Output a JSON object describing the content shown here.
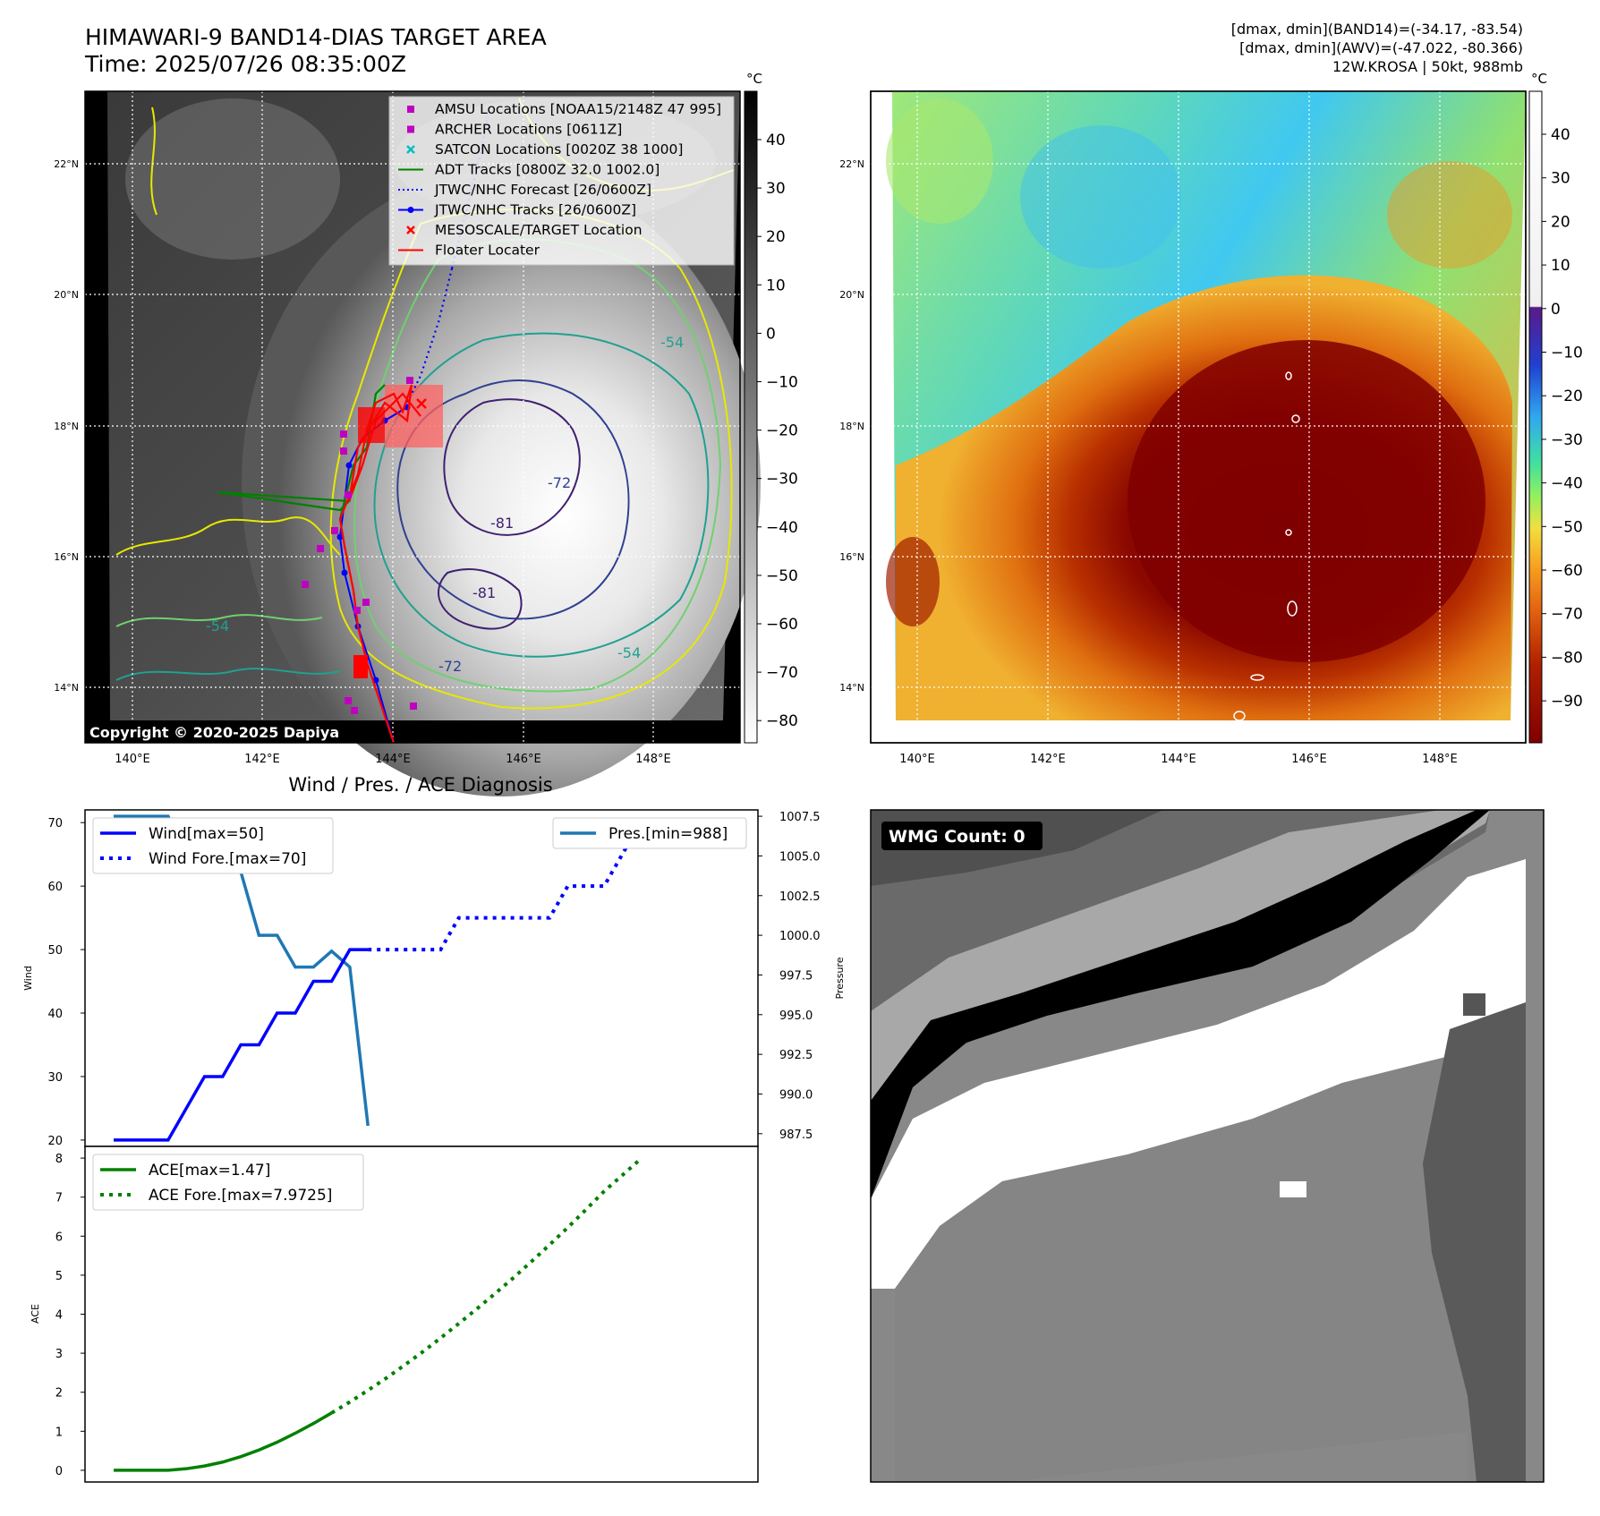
{
  "header": {
    "title": "HIMAWARI-9 BAND14-DIAS TARGET AREA",
    "time": "Time: 2025/07/26 08:35:00Z",
    "stats_band14": "[dmax, dmin](BAND14)=(-34.17, -83.54)",
    "stats_awv": "[dmax, dmin](AWV)=(-47.022, -80.366)",
    "storm": "12W.KROSA | 50kt, 988mb"
  },
  "colors": {
    "amsu": "#c000c0",
    "archer": "#c000c0",
    "satcon": "#00bfbf",
    "adt": "#008000",
    "jtwc_forecast": "#0000ff",
    "jtwc_tracks": "#0000ff",
    "target": "#ff0000",
    "floater": "#ff0000",
    "wind": "#0000ff",
    "pressure": "#1f77b4",
    "ace": "#008000"
  },
  "map": {
    "lon_ticks": [
      "140°E",
      "142°E",
      "144°E",
      "146°E",
      "148°E"
    ],
    "lat_ticks": [
      "22°N",
      "20°N",
      "18°N",
      "16°N",
      "14°N"
    ],
    "copyright": "Copyright © 2020-2025 Dapiya",
    "legend": [
      {
        "label": "AMSU Locations [NOAA15/2148Z 47 995]",
        "marker": "square",
        "color_key": "amsu"
      },
      {
        "label": "ARCHER Locations [0611Z]",
        "marker": "square",
        "color_key": "archer"
      },
      {
        "label": "SATCON Locations [0020Z 38 1000]",
        "marker": "x",
        "color_key": "satcon"
      },
      {
        "label": "ADT Tracks [0800Z 32.0 1002.0]",
        "marker": "line",
        "color_key": "adt"
      },
      {
        "label": "JTWC/NHC Forecast [26/0600Z]",
        "marker": "dotted",
        "color_key": "jtwc_forecast"
      },
      {
        "label": "JTWC/NHC Tracks [26/0600Z]",
        "marker": "line-dot",
        "color_key": "jtwc_tracks"
      },
      {
        "label": "MESOSCALE/TARGET Location",
        "marker": "x",
        "color_key": "target"
      },
      {
        "label": "Floater Locater",
        "marker": "line",
        "color_key": "floater"
      }
    ],
    "contour_labels": [
      "-54",
      "-72",
      "-81",
      "-81",
      "-54",
      "-72",
      "-54"
    ],
    "cbar_unit": "°C",
    "cbar_ticks_gray": [
      "40",
      "30",
      "20",
      "10",
      "0",
      "−10",
      "−20",
      "−30",
      "−40",
      "−50",
      "−60",
      "−70",
      "−80"
    ],
    "cbar_ticks_color": [
      "40",
      "30",
      "20",
      "10",
      "0",
      "−10",
      "−20",
      "−30",
      "−40",
      "−50",
      "−60",
      "−70",
      "−80",
      "−90"
    ]
  },
  "wmg": {
    "label": "WMG Count: 0"
  },
  "chart_data": [
    {
      "type": "line",
      "title": "Wind / Pres. / ACE Diagnosis",
      "ylabel": "Wind",
      "y2label": "Pressure",
      "ylim": [
        19,
        72
      ],
      "y_ticks": [
        20,
        30,
        40,
        50,
        60,
        70
      ],
      "y2lim": [
        986.7,
        1007.9
      ],
      "y2_ticks": [
        "987.5",
        "990.0",
        "992.5",
        "995.0",
        "997.5",
        "1000.0",
        "1002.5",
        "1005.0",
        "1007.5"
      ],
      "series": [
        {
          "name": "Wind[max=50]",
          "style": "solid",
          "values": [
            20,
            20,
            20,
            20,
            25,
            30,
            30,
            35,
            35,
            40,
            40,
            45,
            45,
            50,
            50
          ]
        },
        {
          "name": "Wind Fore.[max=70]",
          "style": "dotted",
          "values": [
            50,
            50,
            50,
            50,
            50,
            55,
            55,
            55,
            55,
            55,
            55,
            60,
            60,
            60,
            65,
            70,
            70,
            70
          ]
        },
        {
          "name": "Pres.[min=988]",
          "style": "solid",
          "axis": "right",
          "values": [
            1007.5,
            1007.5,
            1007.5,
            1007.5,
            1005.0,
            1005.0,
            1004.0,
            1004.0,
            1000.0,
            1000.0,
            998.0,
            998.0,
            999.0,
            998.0,
            988.0
          ]
        }
      ]
    },
    {
      "type": "line",
      "ylabel": "ACE",
      "ylim": [
        -0.3,
        8.3
      ],
      "y_ticks": [
        0,
        1,
        2,
        3,
        4,
        5,
        6,
        7,
        8
      ],
      "series": [
        {
          "name": "ACE[max=1.47]",
          "style": "solid",
          "values": [
            0,
            0,
            0,
            0,
            0.04,
            0.11,
            0.21,
            0.35,
            0.52,
            0.72,
            0.95,
            1.2,
            1.47
          ]
        },
        {
          "name": "ACE Fore.[max=7.9725]",
          "style": "dotted",
          "values": [
            1.47,
            1.75,
            2.05,
            2.36,
            2.69,
            3.03,
            3.39,
            3.76,
            4.14,
            4.53,
            4.93,
            5.35,
            5.78,
            6.22,
            6.68,
            7.15,
            7.56,
            7.9725
          ]
        }
      ]
    }
  ]
}
